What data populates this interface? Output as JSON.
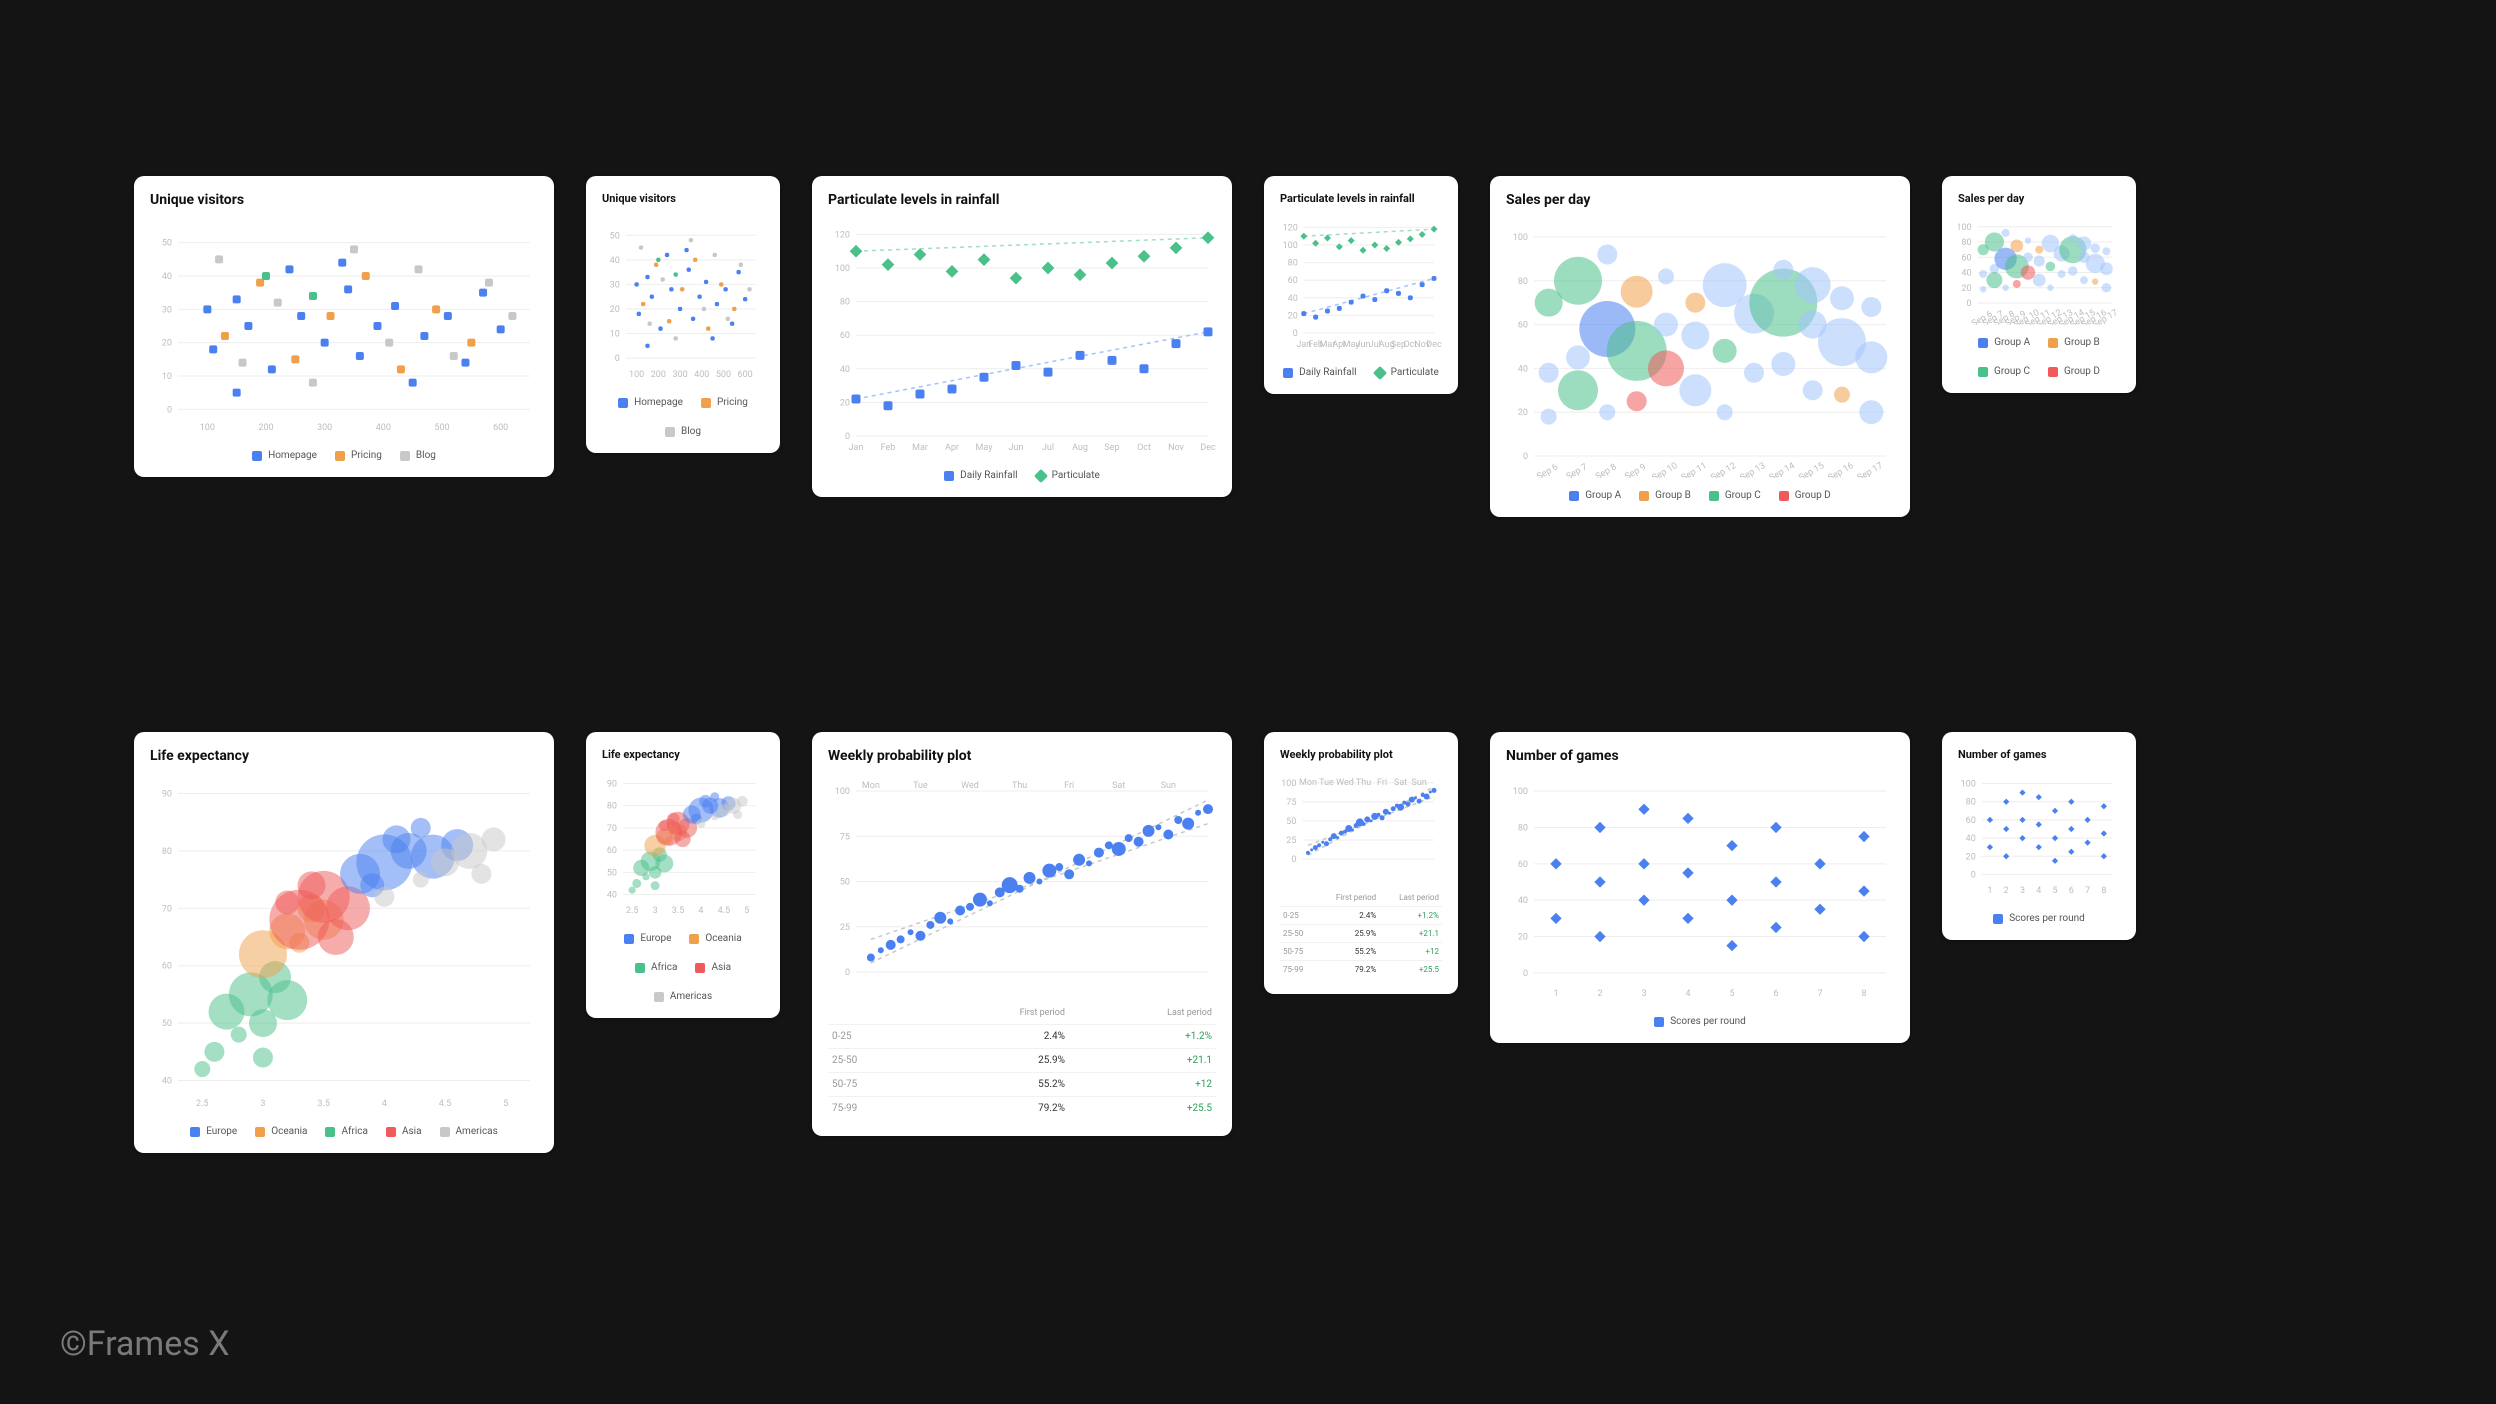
{
  "watermark": "©Frames X",
  "background_color": "#141414",
  "palette": {
    "blue": "#4a80f0",
    "orange": "#f0a04a",
    "gray": "#c8c8c8",
    "green": "#4ac08a",
    "red": "#f05a5a",
    "light_blue": "#a3c4fb"
  },
  "charts": {
    "unique_visitors": {
      "title": "Unique visitors",
      "type": "scatter",
      "x_ticks": [
        100,
        200,
        300,
        400,
        500,
        600
      ],
      "y_ticks": [
        0,
        10,
        20,
        30,
        40,
        50
      ],
      "xlim": [
        50,
        650
      ],
      "ylim": [
        -2,
        55
      ],
      "grid_color": "#eeeeee",
      "legend": [
        {
          "label": "Homepage",
          "color": "#4a80f0"
        },
        {
          "label": "Pricing",
          "color": "#f0a04a"
        },
        {
          "label": "Blog",
          "color": "#c8c8c8"
        }
      ],
      "marker": "square",
      "marker_size": 8,
      "series": [
        {
          "color": "#4a80f0",
          "points": [
            [
              100,
              30
            ],
            [
              110,
              18
            ],
            [
              150,
              33
            ],
            [
              170,
              25
            ],
            [
              210,
              12
            ],
            [
              240,
              42
            ],
            [
              260,
              28
            ],
            [
              300,
              20
            ],
            [
              340,
              36
            ],
            [
              360,
              16
            ],
            [
              390,
              25
            ],
            [
              420,
              31
            ],
            [
              450,
              8
            ],
            [
              470,
              22
            ],
            [
              510,
              28
            ],
            [
              540,
              14
            ],
            [
              570,
              35
            ],
            [
              600,
              24
            ],
            [
              150,
              5
            ],
            [
              330,
              44
            ]
          ]
        },
        {
          "color": "#f0a04a",
          "points": [
            [
              130,
              22
            ],
            [
              190,
              38
            ],
            [
              250,
              15
            ],
            [
              310,
              28
            ],
            [
              370,
              40
            ],
            [
              430,
              12
            ],
            [
              490,
              30
            ],
            [
              550,
              20
            ]
          ]
        },
        {
          "color": "#c8c8c8",
          "points": [
            [
              120,
              45
            ],
            [
              160,
              14
            ],
            [
              220,
              32
            ],
            [
              280,
              8
            ],
            [
              350,
              48
            ],
            [
              410,
              20
            ],
            [
              460,
              42
            ],
            [
              520,
              16
            ],
            [
              580,
              38
            ],
            [
              620,
              28
            ]
          ]
        },
        {
          "color": "#4ac08a",
          "points": [
            [
              200,
              40
            ],
            [
              280,
              34
            ]
          ]
        }
      ]
    },
    "particulate": {
      "title": "Particulate levels in rainfall",
      "type": "scatter-line",
      "x_labels": [
        "Jan",
        "Feb",
        "Mar",
        "Apr",
        "May",
        "Jun",
        "Jul",
        "Aug",
        "Sep",
        "Oct",
        "Nov",
        "Dec"
      ],
      "y_ticks": [
        0,
        20,
        40,
        60,
        80,
        100,
        120
      ],
      "ylim": [
        0,
        125
      ],
      "grid_color": "#eeeeee",
      "legend": [
        {
          "label": "Daily Rainfall",
          "color": "#4a80f0",
          "marker": "square"
        },
        {
          "label": "Particulate",
          "color": "#4ac08a",
          "marker": "diamond"
        }
      ],
      "series_rainfall": {
        "color": "#4a80f0",
        "marker": "square",
        "size": 9,
        "trend_color": "#a3c4fb",
        "values": [
          22,
          18,
          25,
          28,
          35,
          42,
          38,
          48,
          45,
          40,
          55,
          62
        ]
      },
      "series_particulate": {
        "color": "#4ac08a",
        "marker": "diamond",
        "size": 9,
        "trend_color": "#9fe0c0",
        "values": [
          110,
          102,
          108,
          98,
          105,
          94,
          100,
          96,
          103,
          107,
          112,
          118
        ]
      }
    },
    "sales_per_day": {
      "title": "Sales per day",
      "type": "bubble",
      "x_labels": [
        "Sep 6",
        "Sep 7",
        "Sep 8",
        "Sep 9",
        "Sep 10",
        "Sep 11",
        "Sep 12",
        "Sep 13",
        "Sep 14",
        "Sep 15",
        "Sep 16",
        "Sep 17"
      ],
      "y_ticks": [
        0,
        20,
        40,
        60,
        80,
        100
      ],
      "ylim": [
        0,
        105
      ],
      "opacity": 0.55,
      "legend": [
        {
          "label": "Group A",
          "color": "#4a80f0"
        },
        {
          "label": "Group B",
          "color": "#f0a04a"
        },
        {
          "label": "Group C",
          "color": "#4ac08a"
        },
        {
          "label": "Group D",
          "color": "#f05a5a"
        }
      ],
      "bubbles": [
        {
          "x": 0,
          "y": 70,
          "r": 14,
          "c": "#4ac08a"
        },
        {
          "x": 0,
          "y": 38,
          "r": 10,
          "c": "#a3c4fb"
        },
        {
          "x": 0,
          "y": 18,
          "r": 8,
          "c": "#a3c4fb"
        },
        {
          "x": 1,
          "y": 80,
          "r": 24,
          "c": "#4ac08a"
        },
        {
          "x": 1,
          "y": 45,
          "r": 12,
          "c": "#a3c4fb"
        },
        {
          "x": 1,
          "y": 30,
          "r": 20,
          "c": "#4ac08a"
        },
        {
          "x": 2,
          "y": 92,
          "r": 10,
          "c": "#a3c4fb"
        },
        {
          "x": 2,
          "y": 58,
          "r": 28,
          "c": "#4a80f0"
        },
        {
          "x": 2,
          "y": 20,
          "r": 8,
          "c": "#a3c4fb"
        },
        {
          "x": 3,
          "y": 75,
          "r": 16,
          "c": "#f0a04a"
        },
        {
          "x": 3,
          "y": 48,
          "r": 30,
          "c": "#4ac08a"
        },
        {
          "x": 3,
          "y": 25,
          "r": 10,
          "c": "#f05a5a"
        },
        {
          "x": 4,
          "y": 60,
          "r": 12,
          "c": "#a3c4fb"
        },
        {
          "x": 4,
          "y": 40,
          "r": 18,
          "c": "#f05a5a"
        },
        {
          "x": 4,
          "y": 82,
          "r": 8,
          "c": "#a3c4fb"
        },
        {
          "x": 5,
          "y": 55,
          "r": 14,
          "c": "#a3c4fb"
        },
        {
          "x": 5,
          "y": 70,
          "r": 10,
          "c": "#f0a04a"
        },
        {
          "x": 5,
          "y": 30,
          "r": 16,
          "c": "#a3c4fb"
        },
        {
          "x": 6,
          "y": 78,
          "r": 22,
          "c": "#a3c4fb"
        },
        {
          "x": 6,
          "y": 48,
          "r": 12,
          "c": "#4ac08a"
        },
        {
          "x": 6,
          "y": 20,
          "r": 8,
          "c": "#a3c4fb"
        },
        {
          "x": 7,
          "y": 65,
          "r": 20,
          "c": "#a3c4fb"
        },
        {
          "x": 7,
          "y": 38,
          "r": 10,
          "c": "#a3c4fb"
        },
        {
          "x": 8,
          "y": 70,
          "r": 34,
          "c": "#4ac08a"
        },
        {
          "x": 8,
          "y": 42,
          "r": 12,
          "c": "#a3c4fb"
        },
        {
          "x": 8,
          "y": 85,
          "r": 10,
          "c": "#a3c4fb"
        },
        {
          "x": 9,
          "y": 60,
          "r": 14,
          "c": "#a3c4fb"
        },
        {
          "x": 9,
          "y": 30,
          "r": 10,
          "c": "#a3c4fb"
        },
        {
          "x": 9,
          "y": 78,
          "r": 18,
          "c": "#a3c4fb"
        },
        {
          "x": 10,
          "y": 52,
          "r": 24,
          "c": "#a3c4fb"
        },
        {
          "x": 10,
          "y": 72,
          "r": 12,
          "c": "#a3c4fb"
        },
        {
          "x": 10,
          "y": 28,
          "r": 8,
          "c": "#f0a04a"
        },
        {
          "x": 11,
          "y": 45,
          "r": 16,
          "c": "#a3c4fb"
        },
        {
          "x": 11,
          "y": 68,
          "r": 10,
          "c": "#a3c4fb"
        },
        {
          "x": 11,
          "y": 20,
          "r": 12,
          "c": "#a3c4fb"
        }
      ]
    },
    "life_expectancy": {
      "title": "Life expectancy",
      "type": "bubble",
      "x_ticks": [
        2.5,
        3,
        3.5,
        4,
        4.5,
        5
      ],
      "y_ticks": [
        40,
        50,
        60,
        70,
        80,
        90
      ],
      "xlim": [
        2.3,
        5.2
      ],
      "ylim": [
        38,
        92
      ],
      "opacity": 0.5,
      "legend": [
        {
          "label": "Europe",
          "color": "#4a80f0"
        },
        {
          "label": "Oceania",
          "color": "#f0a04a"
        },
        {
          "label": "Africa",
          "color": "#4ac08a"
        },
        {
          "label": "Asia",
          "color": "#f05a5a"
        },
        {
          "label": "Americas",
          "color": "#c8c8c8"
        }
      ],
      "bubbles": [
        {
          "x": 2.6,
          "y": 45,
          "r": 10,
          "c": "#4ac08a"
        },
        {
          "x": 2.7,
          "y": 52,
          "r": 18,
          "c": "#4ac08a"
        },
        {
          "x": 2.8,
          "y": 48,
          "r": 8,
          "c": "#4ac08a"
        },
        {
          "x": 2.9,
          "y": 55,
          "r": 22,
          "c": "#4ac08a"
        },
        {
          "x": 3.0,
          "y": 50,
          "r": 14,
          "c": "#4ac08a"
        },
        {
          "x": 3.0,
          "y": 44,
          "r": 10,
          "c": "#4ac08a"
        },
        {
          "x": 3.1,
          "y": 58,
          "r": 16,
          "c": "#4ac08a"
        },
        {
          "x": 3.2,
          "y": 54,
          "r": 20,
          "c": "#4ac08a"
        },
        {
          "x": 2.5,
          "y": 42,
          "r": 8,
          "c": "#4ac08a"
        },
        {
          "x": 3.0,
          "y": 62,
          "r": 24,
          "c": "#f0a04a"
        },
        {
          "x": 3.2,
          "y": 66,
          "r": 18,
          "c": "#f0a04a"
        },
        {
          "x": 3.4,
          "y": 70,
          "r": 14,
          "c": "#f0a04a"
        },
        {
          "x": 3.3,
          "y": 64,
          "r": 10,
          "c": "#f0a04a"
        },
        {
          "x": 3.5,
          "y": 68,
          "r": 20,
          "c": "#f0a04a"
        },
        {
          "x": 3.3,
          "y": 68,
          "r": 30,
          "c": "#f05a5a"
        },
        {
          "x": 3.5,
          "y": 72,
          "r": 26,
          "c": "#f05a5a"
        },
        {
          "x": 3.6,
          "y": 65,
          "r": 18,
          "c": "#f05a5a"
        },
        {
          "x": 3.4,
          "y": 74,
          "r": 14,
          "c": "#f05a5a"
        },
        {
          "x": 3.7,
          "y": 70,
          "r": 22,
          "c": "#f05a5a"
        },
        {
          "x": 3.2,
          "y": 71,
          "r": 12,
          "c": "#f05a5a"
        },
        {
          "x": 3.8,
          "y": 76,
          "r": 20,
          "c": "#4a80f0"
        },
        {
          "x": 4.0,
          "y": 78,
          "r": 28,
          "c": "#4a80f0"
        },
        {
          "x": 4.2,
          "y": 80,
          "r": 18,
          "c": "#4a80f0"
        },
        {
          "x": 4.1,
          "y": 82,
          "r": 14,
          "c": "#4a80f0"
        },
        {
          "x": 4.4,
          "y": 79,
          "r": 22,
          "c": "#4a80f0"
        },
        {
          "x": 4.3,
          "y": 84,
          "r": 10,
          "c": "#4a80f0"
        },
        {
          "x": 4.6,
          "y": 81,
          "r": 16,
          "c": "#4a80f0"
        },
        {
          "x": 3.9,
          "y": 74,
          "r": 12,
          "c": "#4a80f0"
        },
        {
          "x": 4.5,
          "y": 78,
          "r": 14,
          "c": "#c8c8c8"
        },
        {
          "x": 4.7,
          "y": 80,
          "r": 18,
          "c": "#c8c8c8"
        },
        {
          "x": 4.8,
          "y": 76,
          "r": 10,
          "c": "#c8c8c8"
        },
        {
          "x": 4.9,
          "y": 82,
          "r": 12,
          "c": "#c8c8c8"
        },
        {
          "x": 4.3,
          "y": 75,
          "r": 8,
          "c": "#c8c8c8"
        },
        {
          "x": 4.0,
          "y": 72,
          "r": 10,
          "c": "#c8c8c8"
        }
      ]
    },
    "weekly_probability": {
      "title": "Weekly probability plot",
      "type": "scatter-trend",
      "x_labels": [
        "Mon",
        "Tue",
        "Wed",
        "Thu",
        "Fri",
        "Sat",
        "Sun"
      ],
      "y_ticks": [
        0,
        25,
        50,
        75,
        100
      ],
      "ylim": [
        0,
        105
      ],
      "color": "#4a80f0",
      "trend_color": "#c8c8c8",
      "points": [
        {
          "x": 0.0,
          "y": 8,
          "r": 4
        },
        {
          "x": 0.2,
          "y": 12,
          "r": 3
        },
        {
          "x": 0.4,
          "y": 15,
          "r": 5
        },
        {
          "x": 0.6,
          "y": 18,
          "r": 4
        },
        {
          "x": 0.8,
          "y": 22,
          "r": 3
        },
        {
          "x": 1.0,
          "y": 20,
          "r": 5
        },
        {
          "x": 1.2,
          "y": 26,
          "r": 4
        },
        {
          "x": 1.4,
          "y": 30,
          "r": 6
        },
        {
          "x": 1.6,
          "y": 28,
          "r": 3
        },
        {
          "x": 1.8,
          "y": 34,
          "r": 5
        },
        {
          "x": 2.0,
          "y": 36,
          "r": 4
        },
        {
          "x": 2.2,
          "y": 40,
          "r": 7
        },
        {
          "x": 2.4,
          "y": 38,
          "r": 3
        },
        {
          "x": 2.6,
          "y": 44,
          "r": 5
        },
        {
          "x": 2.8,
          "y": 48,
          "r": 8
        },
        {
          "x": 3.0,
          "y": 46,
          "r": 4
        },
        {
          "x": 3.2,
          "y": 52,
          "r": 6
        },
        {
          "x": 3.4,
          "y": 50,
          "r": 3
        },
        {
          "x": 3.6,
          "y": 56,
          "r": 7
        },
        {
          "x": 3.8,
          "y": 58,
          "r": 4
        },
        {
          "x": 4.0,
          "y": 54,
          "r": 5
        },
        {
          "x": 4.2,
          "y": 62,
          "r": 6
        },
        {
          "x": 4.4,
          "y": 60,
          "r": 3
        },
        {
          "x": 4.6,
          "y": 66,
          "r": 5
        },
        {
          "x": 4.8,
          "y": 70,
          "r": 4
        },
        {
          "x": 5.0,
          "y": 68,
          "r": 7
        },
        {
          "x": 5.2,
          "y": 74,
          "r": 4
        },
        {
          "x": 5.4,
          "y": 72,
          "r": 5
        },
        {
          "x": 5.6,
          "y": 78,
          "r": 6
        },
        {
          "x": 5.8,
          "y": 80,
          "r": 3
        },
        {
          "x": 6.0,
          "y": 76,
          "r": 5
        },
        {
          "x": 6.2,
          "y": 84,
          "r": 4
        },
        {
          "x": 6.4,
          "y": 82,
          "r": 6
        },
        {
          "x": 6.6,
          "y": 88,
          "r": 3
        },
        {
          "x": 6.8,
          "y": 90,
          "r": 5
        }
      ],
      "table": {
        "headers": [
          "",
          "First period",
          "Last period"
        ],
        "rows": [
          {
            "range": "0-25",
            "first": "2.4%",
            "last": "+1.2%"
          },
          {
            "range": "25-50",
            "first": "25.9%",
            "last": "+21.1"
          },
          {
            "range": "50-75",
            "first": "55.2%",
            "last": "+12"
          },
          {
            "range": "75-99",
            "first": "79.2%",
            "last": "+25.5"
          }
        ]
      }
    },
    "number_of_games": {
      "title": "Number of games",
      "type": "scatter",
      "x_ticks": [
        1,
        2,
        3,
        4,
        5,
        6,
        7,
        8
      ],
      "y_ticks": [
        0,
        20,
        40,
        60,
        80,
        100
      ],
      "xlim": [
        0.5,
        8.5
      ],
      "ylim": [
        -5,
        105
      ],
      "marker": "diamond",
      "marker_size": 8,
      "color": "#4a80f0",
      "legend": [
        {
          "label": "Scores per round",
          "color": "#4a80f0"
        }
      ],
      "points": [
        [
          1,
          60
        ],
        [
          1,
          30
        ],
        [
          2,
          80
        ],
        [
          2,
          50
        ],
        [
          2,
          20
        ],
        [
          3,
          90
        ],
        [
          3,
          60
        ],
        [
          3,
          40
        ],
        [
          4,
          85
        ],
        [
          4,
          55
        ],
        [
          4,
          30
        ],
        [
          5,
          70
        ],
        [
          5,
          40
        ],
        [
          5,
          15
        ],
        [
          6,
          80
        ],
        [
          6,
          50
        ],
        [
          6,
          25
        ],
        [
          7,
          60
        ],
        [
          7,
          35
        ],
        [
          8,
          75
        ],
        [
          8,
          45
        ],
        [
          8,
          20
        ]
      ]
    }
  }
}
